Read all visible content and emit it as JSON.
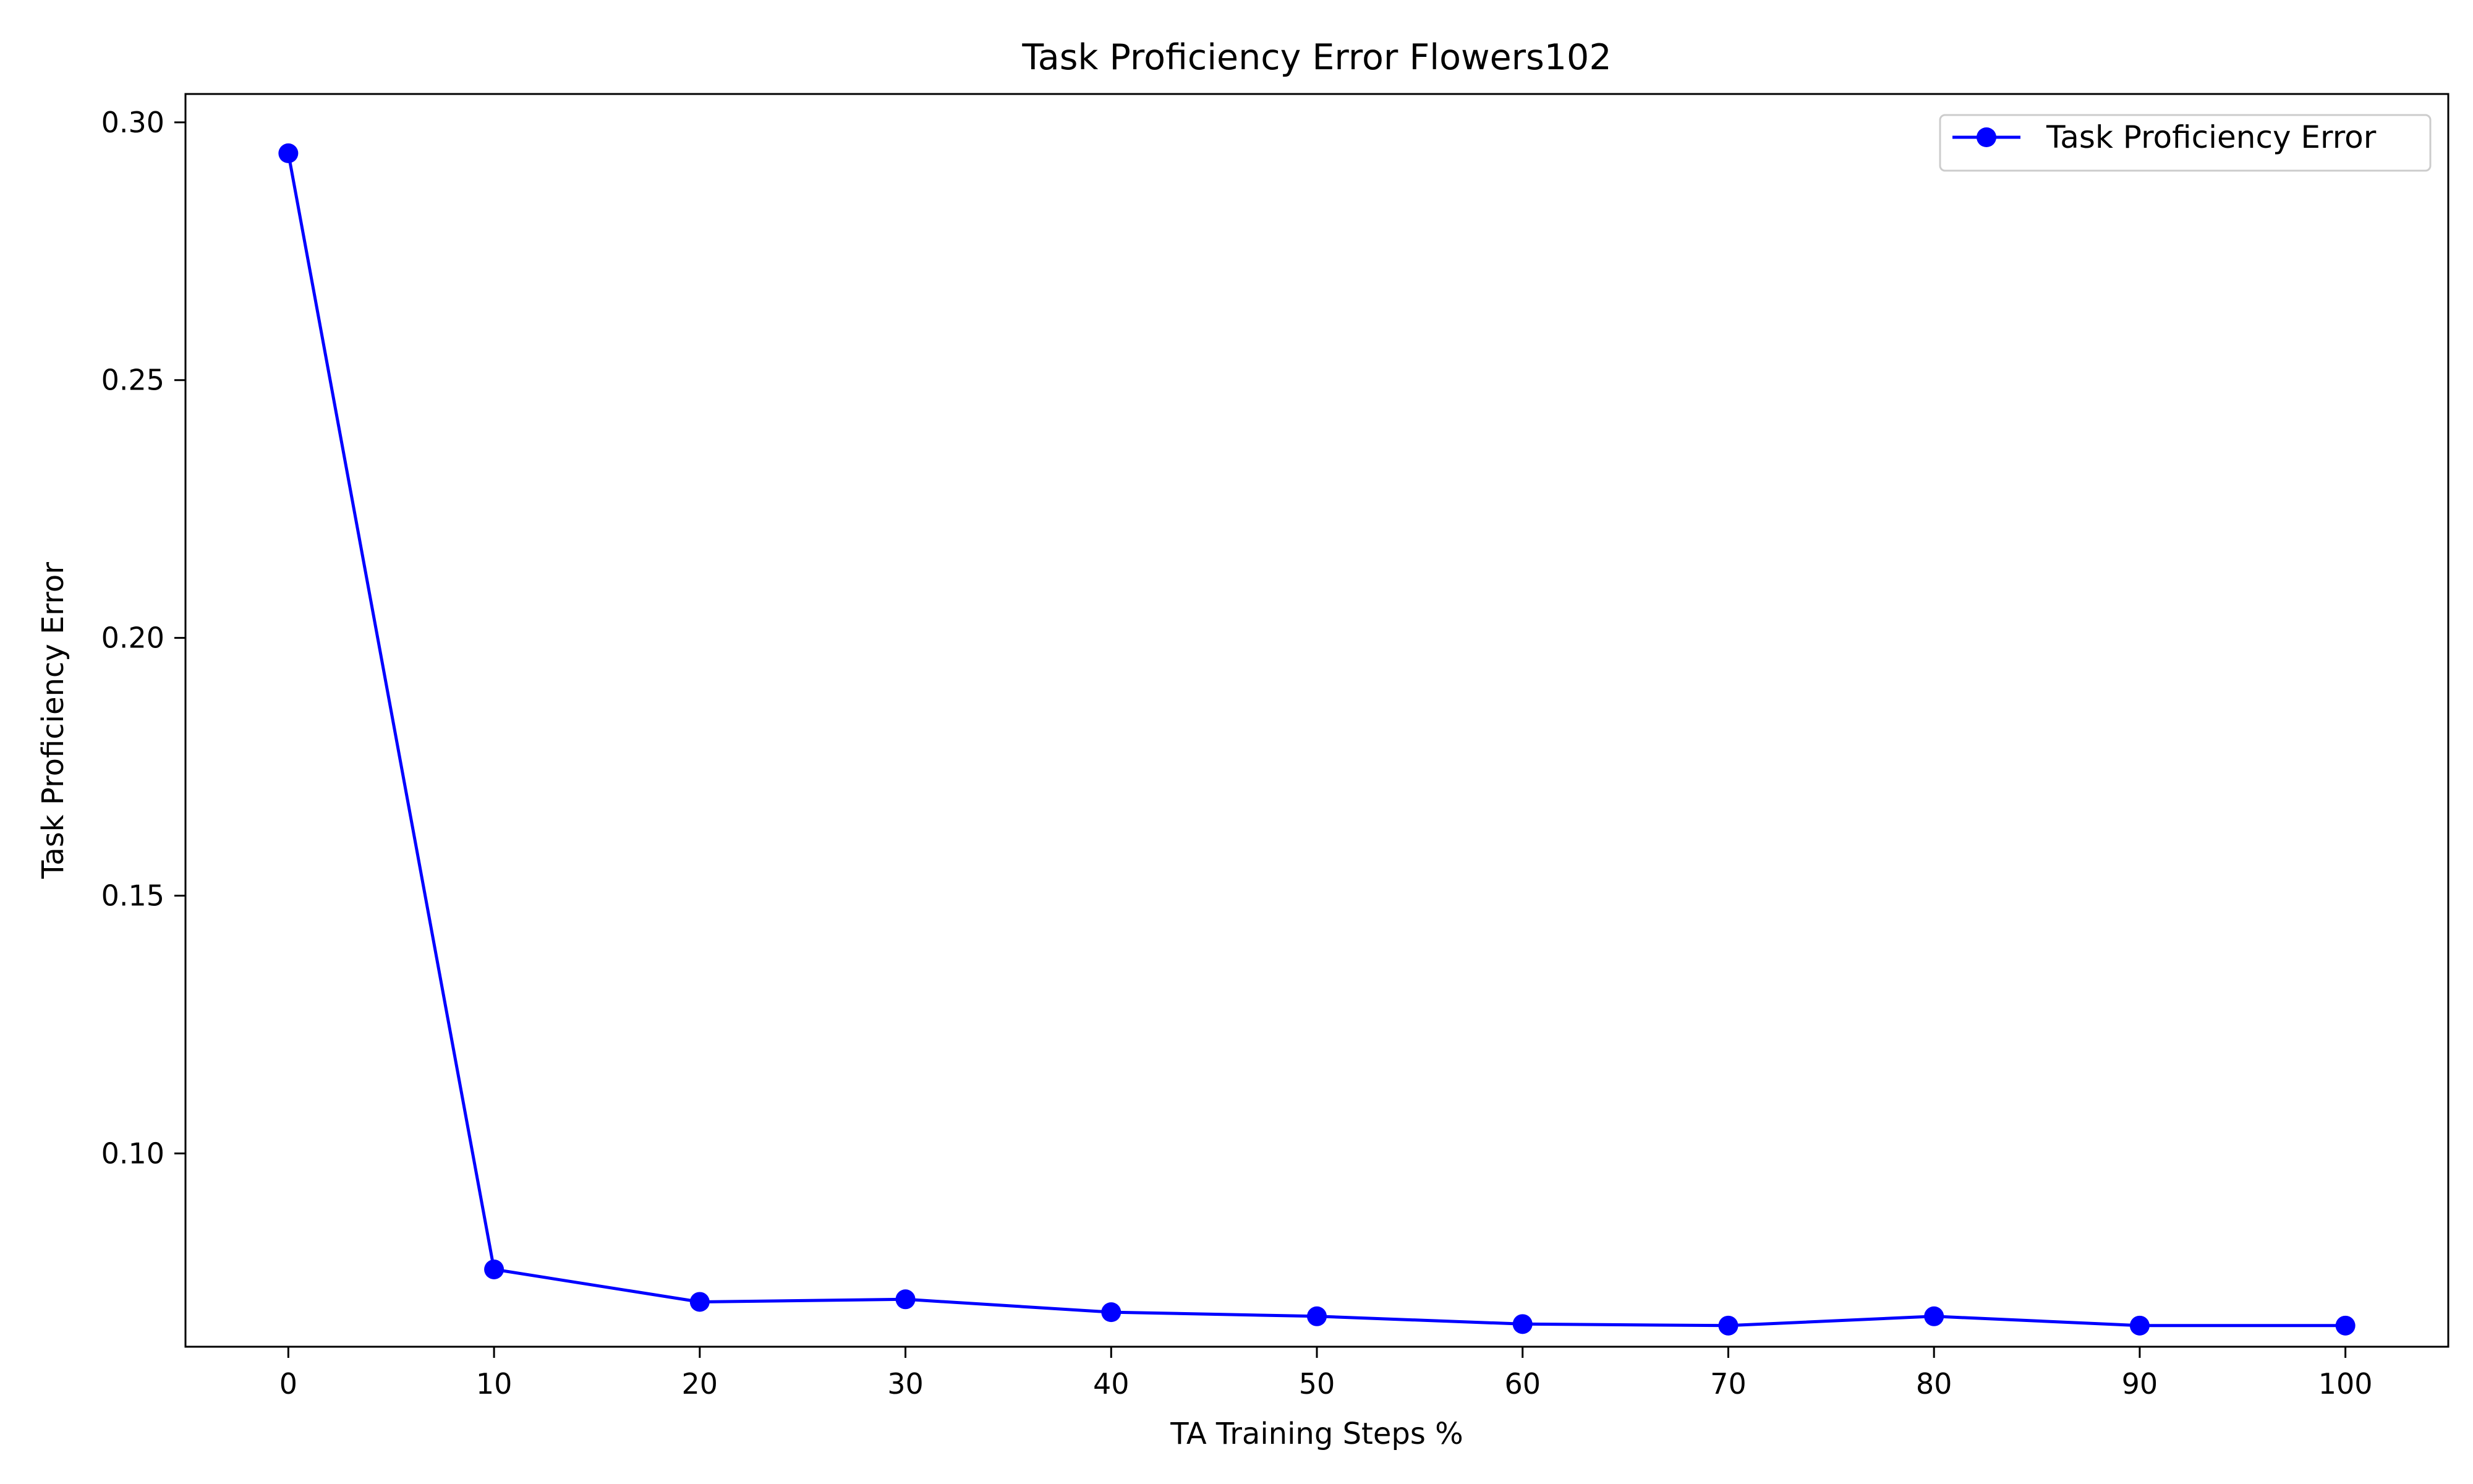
{
  "chart_data": {
    "type": "line",
    "title": "Task Proficiency Error Flowers102",
    "xlabel": "TA Training Steps %",
    "ylabel": "Task Proficiency Error",
    "xlim": [
      -5,
      105
    ],
    "ylim": [
      0.0625,
      0.3055
    ],
    "x_ticks": [
      0,
      10,
      20,
      30,
      40,
      50,
      60,
      70,
      80,
      90,
      100
    ],
    "y_ticks": [
      0.1,
      0.15,
      0.2,
      0.25,
      0.3
    ],
    "y_tick_labels": [
      "0.10",
      "0.15",
      "0.20",
      "0.25",
      "0.30"
    ],
    "grid": false,
    "legend": {
      "placement": "top-right"
    },
    "x": [
      0,
      10,
      20,
      30,
      40,
      50,
      60,
      70,
      80,
      90,
      100
    ],
    "series": [
      {
        "name": "Task Proficiency Error",
        "color": "#0000ff",
        "marker": "circle",
        "values": [
          0.294,
          0.0775,
          0.0712,
          0.0717,
          0.0692,
          0.0684,
          0.0669,
          0.0666,
          0.0684,
          0.0666,
          0.0666
        ]
      }
    ]
  }
}
